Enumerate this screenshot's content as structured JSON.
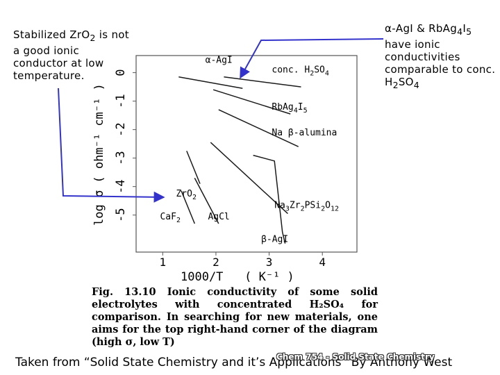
{
  "notes": {
    "left": [
      "Stabilized Zr",
      "O",
      "2",
      " is not a good ionic conductor at low temperature."
    ],
    "right": [
      "α-AgI & RbAg",
      "4",
      "I",
      "5",
      " have ionic conductivities comparable to conc. H",
      "2",
      "SO",
      "4"
    ]
  },
  "colors": {
    "arrow": "#3333cc",
    "curves": "#1a1a1a",
    "frame": "#555555"
  },
  "chart_data": {
    "type": "line",
    "xlabel": "1000/T   ( K⁻¹ )",
    "ylabel": "log σ  ( ohm⁻¹ cm⁻¹ )",
    "x_ticks": [
      "1",
      "2",
      "3",
      "4"
    ],
    "y_ticks": [
      "0",
      "-1",
      "-2",
      "-3",
      "-4",
      "-5"
    ],
    "xlim": [
      0.5,
      4.65
    ],
    "ylim": [
      -6.3,
      0.6
    ],
    "series": [
      {
        "name": "α-AgI",
        "points": [
          [
            1.3,
            -0.15
          ],
          [
            2.5,
            -0.55
          ]
        ]
      },
      {
        "name": "conc. H₂SO₄",
        "points": [
          [
            2.15,
            -0.15
          ],
          [
            3.6,
            -0.5
          ]
        ]
      },
      {
        "name": "RbAg₄I₅",
        "points": [
          [
            1.95,
            -0.6
          ],
          [
            3.4,
            -1.45
          ]
        ]
      },
      {
        "name": "Na β-alumina",
        "points": [
          [
            2.05,
            -1.3
          ],
          [
            3.55,
            -2.6
          ]
        ]
      },
      {
        "name": "Na₃Zr₂PSi₂O₁₂",
        "points": [
          [
            1.9,
            -2.45
          ],
          [
            3.35,
            -4.95
          ]
        ]
      },
      {
        "name": "ZrO₂",
        "points": [
          [
            1.45,
            -2.75
          ],
          [
            1.7,
            -3.9
          ]
        ]
      },
      {
        "name": "CaF₂",
        "points": [
          [
            1.35,
            -4.15
          ],
          [
            1.6,
            -5.3
          ]
        ]
      },
      {
        "name": "AgCl",
        "points": [
          [
            1.6,
            -3.7
          ],
          [
            2.05,
            -5.3
          ]
        ]
      },
      {
        "name": "β-AgI",
        "points": [
          [
            2.7,
            -2.9
          ],
          [
            3.1,
            -3.1
          ],
          [
            3.25,
            -5.6
          ],
          [
            3.3,
            -6.0
          ]
        ]
      }
    ],
    "annotations": [
      {
        "text": "α-AgI",
        "sub": [],
        "x": 1.8,
        "y": 0.35
      },
      {
        "text": "conc. H2SO4",
        "sub": [
          7,
          10
        ],
        "x": 3.05,
        "y": 0.0
      },
      {
        "text": "RbAg4I5",
        "sub": [
          4,
          6
        ],
        "x": 3.05,
        "y": -1.3
      },
      {
        "text": "Na β-alumina",
        "sub": [],
        "x": 3.05,
        "y": -2.2
      },
      {
        "text": "ZrO2",
        "sub": [
          3
        ],
        "x": 1.25,
        "y": -4.35
      },
      {
        "text": "CaF2",
        "sub": [
          3
        ],
        "x": 0.95,
        "y": -5.15
      },
      {
        "text": "AgCl",
        "sub": [],
        "x": 1.85,
        "y": -5.15
      },
      {
        "text": "Na3Zr2PSi2O12",
        "sub": [
          2,
          5,
          9,
          11,
          12
        ],
        "x": 3.1,
        "y": -4.75
      },
      {
        "text": "β-AgI",
        "sub": [],
        "x": 2.85,
        "y": -5.95
      }
    ]
  },
  "caption": {
    "label": "Fig. 13.10",
    "text": "Ionic conductivity of some solid electrolytes with concentrated H₂SO₄ for comparison. In searching for new materials, one aims for the top right-hand corner of the diagram (high σ, low T)"
  },
  "footer": {
    "text": "Taken from “Solid State Chemistry and it’s Applications” By Anthony West",
    "course": "Chem 754 - Solid State Chemistry"
  }
}
